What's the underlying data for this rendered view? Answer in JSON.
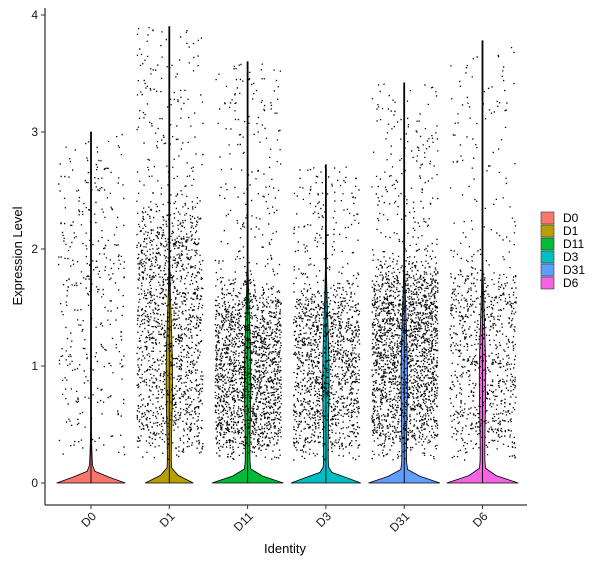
{
  "chart_data": {
    "type": "violin",
    "title": "",
    "xlabel": "Identity",
    "ylabel": "Expression Level",
    "ylim": [
      -0.2,
      4.05
    ],
    "yticks": [
      "0",
      "1",
      "2",
      "3",
      "4"
    ],
    "categories": [
      "D0",
      "D1",
      "D11",
      "D3",
      "D31",
      "D6"
    ],
    "colors": [
      "#F8766D",
      "#B79F00",
      "#00BA38",
      "#00BFC4",
      "#619CFF",
      "#F564E3"
    ],
    "legend": {
      "title": "",
      "placement": "right",
      "entries": [
        "D0",
        "D1",
        "D11",
        "D3",
        "D31",
        "D6"
      ]
    },
    "series": [
      {
        "name": "D0",
        "max": 3.0,
        "jitter_max": 3.0,
        "n_points": 600,
        "zero_fraction": 0.8,
        "violin_zero_width": 0.88,
        "bulk_low": 0.3,
        "bulk_high": 2.5
      },
      {
        "name": "D1",
        "max": 3.9,
        "jitter_max": 3.9,
        "n_points": 2600,
        "zero_fraction": 0.15,
        "violin_zero_width": 0.6,
        "bulk_low": 0.3,
        "bulk_high": 2.3
      },
      {
        "name": "D11",
        "max": 3.6,
        "jitter_max": 3.6,
        "n_points": 3200,
        "zero_fraction": 0.15,
        "violin_zero_width": 0.9,
        "bulk_low": 0.3,
        "bulk_high": 1.6
      },
      {
        "name": "D3",
        "max": 2.72,
        "jitter_max": 2.72,
        "n_points": 2400,
        "zero_fraction": 0.15,
        "violin_zero_width": 0.88,
        "bulk_low": 0.3,
        "bulk_high": 1.6
      },
      {
        "name": "D31",
        "max": 3.42,
        "jitter_max": 3.42,
        "n_points": 3600,
        "zero_fraction": 0.15,
        "violin_zero_width": 0.9,
        "bulk_low": 0.35,
        "bulk_high": 1.8
      },
      {
        "name": "D6",
        "max": 3.78,
        "jitter_max": 3.78,
        "n_points": 1500,
        "zero_fraction": 0.15,
        "violin_zero_width": 0.9,
        "bulk_low": 0.3,
        "bulk_high": 1.8
      }
    ],
    "grid": false
  }
}
